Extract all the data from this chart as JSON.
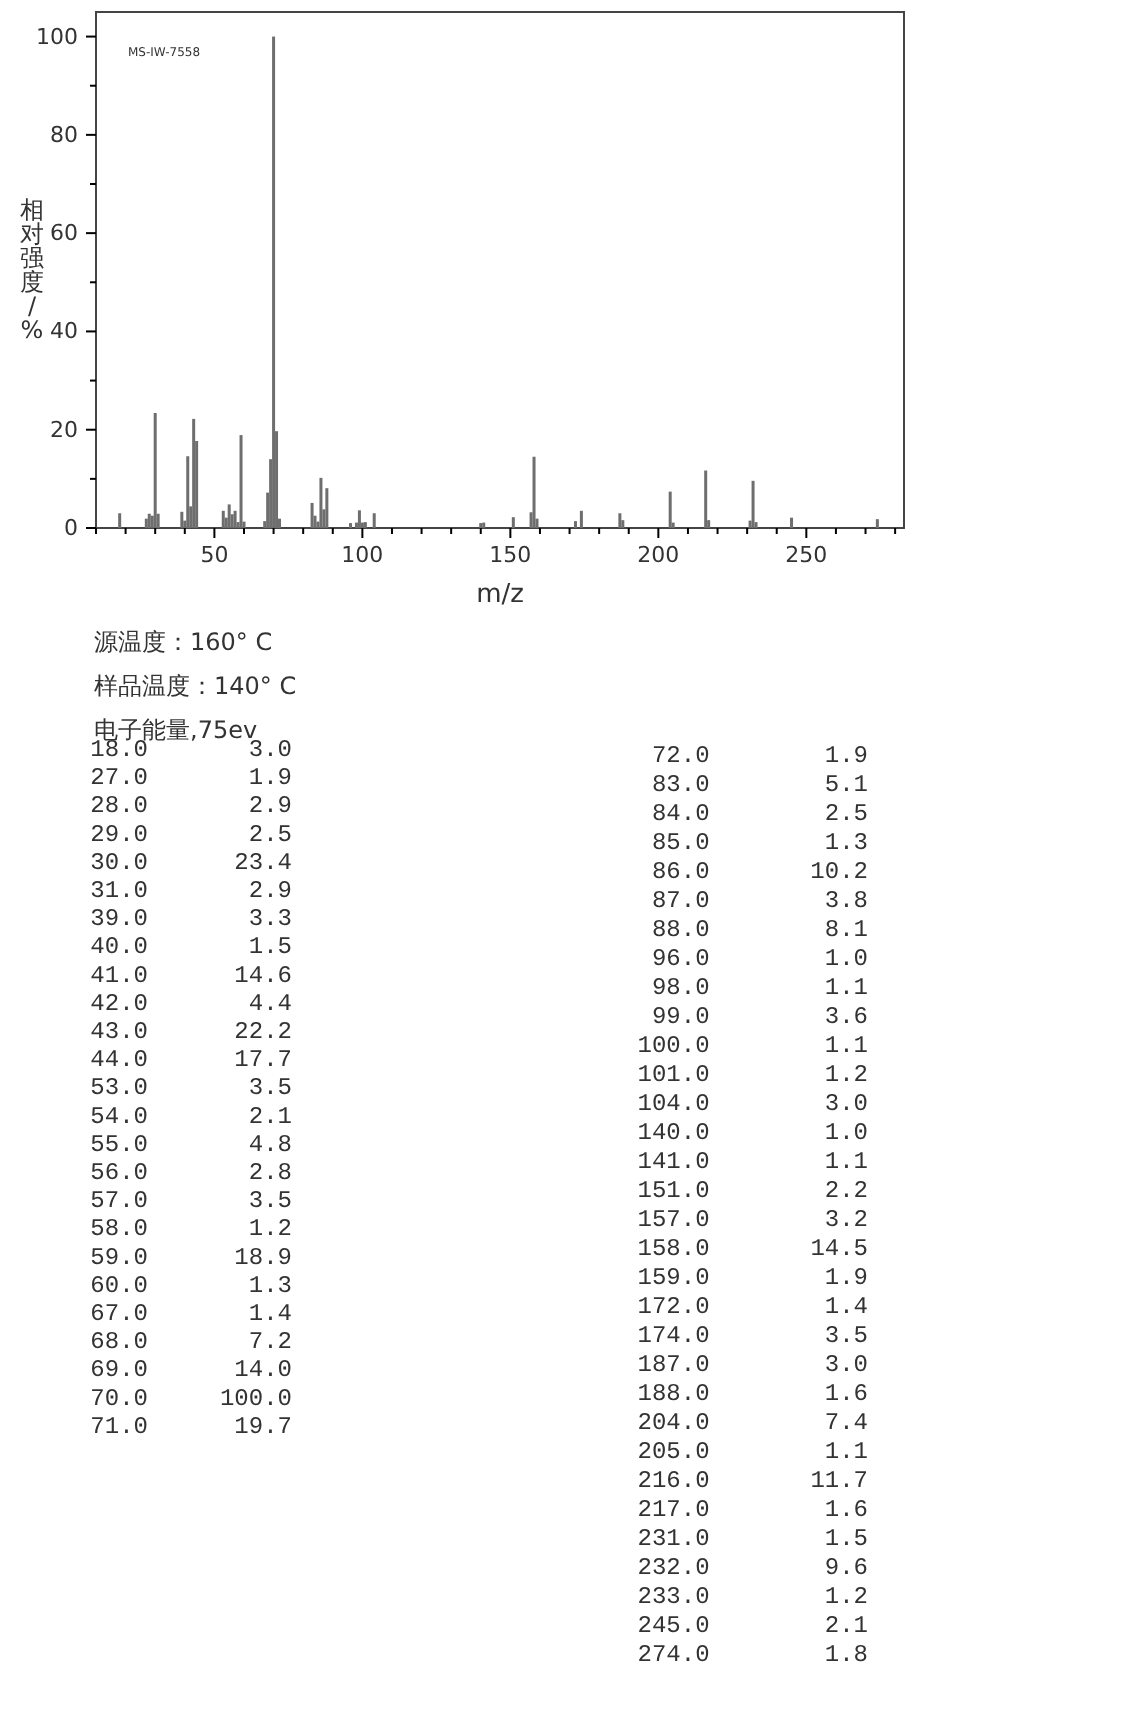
{
  "chart_data": [
    {
      "type": "bar",
      "xlabel": "m/z",
      "ylabel": "相对强度/%",
      "annotations": [
        "MS-IW-7558",
        "源温度：160° C",
        "样品温度：140° C",
        "电子能量,75ev"
      ],
      "x": [
        18,
        27,
        28,
        29,
        30,
        31,
        39,
        40,
        41,
        42,
        43,
        44,
        53,
        54,
        55,
        56,
        57,
        58,
        59,
        60,
        67,
        68,
        69,
        70,
        71,
        72,
        83,
        84,
        85,
        86,
        87,
        88,
        96,
        98,
        99,
        100,
        101,
        104,
        140,
        141,
        151,
        157,
        158,
        159,
        172,
        174,
        187,
        188,
        204,
        205,
        216,
        217,
        231,
        232,
        233,
        245,
        274
      ],
      "values": [
        3.0,
        1.9,
        2.9,
        2.5,
        23.4,
        2.9,
        3.3,
        1.5,
        14.6,
        4.4,
        22.2,
        17.7,
        3.5,
        2.1,
        4.8,
        2.8,
        3.5,
        1.2,
        18.9,
        1.3,
        1.4,
        7.2,
        14.0,
        100.0,
        19.7,
        1.9,
        5.1,
        2.5,
        1.3,
        10.2,
        3.8,
        8.1,
        1.0,
        1.1,
        3.6,
        1.1,
        1.2,
        3.0,
        1.0,
        1.1,
        2.2,
        3.2,
        14.5,
        1.9,
        1.4,
        3.5,
        3.0,
        1.6,
        7.4,
        1.1,
        11.7,
        1.6,
        1.5,
        9.6,
        1.2,
        2.1,
        1.8
      ],
      "color": "#6e6e6e",
      "xlim": [
        10,
        283
      ],
      "ylim": [
        0,
        105
      ],
      "xticks": [
        {
          "value": 10,
          "label": null
        },
        {
          "value": 20,
          "label": null
        },
        {
          "value": 30,
          "label": null
        },
        {
          "value": 40,
          "label": null
        },
        50,
        {
          "value": 60,
          "label": null
        },
        {
          "value": 70,
          "label": null
        },
        {
          "value": 80,
          "label": null
        },
        {
          "value": 90,
          "label": null
        },
        100,
        {
          "value": 110,
          "label": null
        },
        {
          "value": 120,
          "label": null
        },
        {
          "value": 130,
          "label": null
        },
        {
          "value": 140,
          "label": null
        },
        150,
        {
          "value": 160,
          "label": null
        },
        {
          "value": 170,
          "label": null
        },
        {
          "value": 180,
          "label": null
        },
        {
          "value": 190,
          "label": null
        },
        200,
        {
          "value": 210,
          "label": null
        },
        {
          "value": 220,
          "label": null
        },
        {
          "value": 230,
          "label": null
        },
        {
          "value": 240,
          "label": null
        },
        250,
        {
          "value": 260,
          "label": null
        },
        {
          "value": 270,
          "label": null
        },
        {
          "value": 280,
          "label": null
        }
      ],
      "yticks": [
        0,
        {
          "value": 10,
          "label": null
        },
        20,
        {
          "value": 30,
          "label": null
        },
        40,
        {
          "value": 50,
          "label": null
        },
        60,
        {
          "value": 70,
          "label": null
        },
        80,
        {
          "value": 90,
          "label": null
        },
        100
      ],
      "grid": false
    },
    {
      "type": "other",
      "annotations": [
        "18.0 3.0",
        "27.0 1.9",
        "28.0 2.9",
        "29.0 2.5",
        "30.0 23.4",
        "31.0 2.9",
        "39.0 3.3",
        "40.0 1.5",
        "41.0 14.6",
        "42.0 4.4",
        "43.0 22.2",
        "44.0 17.7",
        "53.0 3.5",
        "54.0 2.1",
        "55.0 4.8",
        "56.0 2.8",
        "57.0 3.5",
        "58.0 1.2",
        "59.0 18.9",
        "60.0 1.3",
        "67.0 1.4",
        "68.0 7.2",
        "69.0 14.0",
        "70.0 100.0",
        "71.0 19.7",
        "72.0 1.9",
        "83.0 5.1",
        "84.0 2.5",
        "85.0 1.3",
        "86.0 10.2",
        "87.0 3.8",
        "88.0 8.1",
        "96.0 1.0",
        "98.0 1.1",
        "99.0 3.6",
        "100.0 1.1",
        "101.0 1.2",
        "104.0 3.0",
        "140.0 1.0",
        "141.0 1.1",
        "151.0 2.2",
        "157.0 3.2",
        "158.0 14.5",
        "159.0 1.9",
        "172.0 1.4",
        "174.0 3.5",
        "187.0 3.0",
        "188.0 1.6",
        "204.0 7.4",
        "205.0 1.1",
        "216.0 11.7",
        "217.0 1.6",
        "231.0 1.5",
        "232.0 9.6",
        "233.0 1.2",
        "245.0 2.1",
        "274.0 1.8"
      ]
    }
  ]
}
